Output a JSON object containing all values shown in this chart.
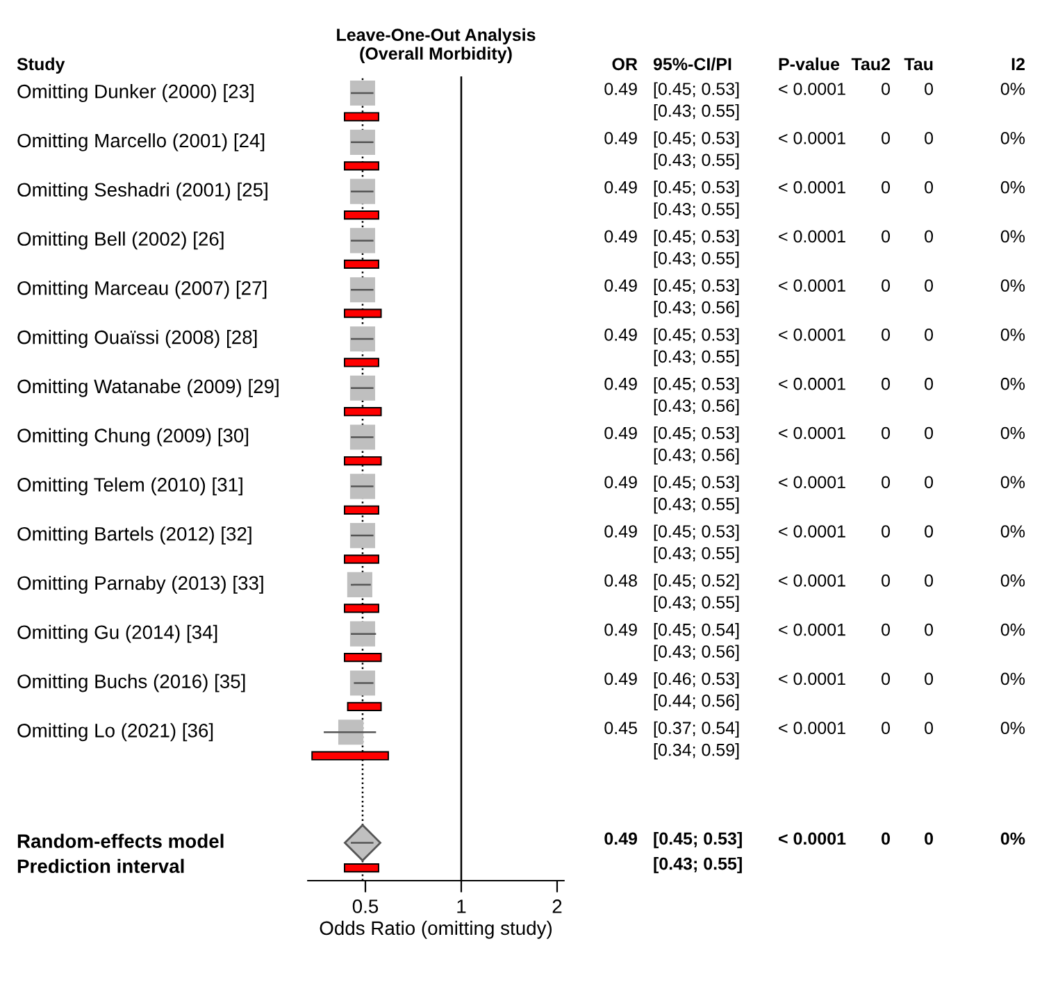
{
  "chart_data": {
    "type": "scatter",
    "orientation": "horizontal",
    "title": "Leave-One-Out Analysis\n(Overall Morbidity)",
    "xlabel": "Odds Ratio (omitting study)",
    "categories": [
      "Omitting Dunker (2000) [23]",
      "Omitting Marcello (2001) [24]",
      "Omitting Seshadri (2001) [25]",
      "Omitting Bell (2002) [26]",
      "Omitting Marceau (2007) [27]",
      "Omitting Ouaïssi (2008) [28]",
      "Omitting Watanabe (2009) [29]",
      "Omitting Chung (2009) [30]",
      "Omitting Telem (2010) [31]",
      "Omitting Bartels (2012) [32]",
      "Omitting Parnaby (2013) [33]",
      "Omitting Gu (2014) [34]",
      "Omitting Buchs (2016) [35]",
      "Omitting Lo (2021) [36]",
      "Random-effects model",
      "Prediction interval"
    ],
    "series": [
      {
        "marker": "square",
        "color": "#bfbfbf",
        "values": [
          0.49,
          0.49,
          0.49,
          0.49,
          0.49,
          0.49,
          0.49,
          0.49,
          0.49,
          0.49,
          0.48,
          0.49,
          0.49,
          0.45,
          null,
          null
        ],
        "errors": [
          [
            0.45,
            0.53
          ],
          [
            0.45,
            0.53
          ],
          [
            0.45,
            0.53
          ],
          [
            0.45,
            0.53
          ],
          [
            0.45,
            0.53
          ],
          [
            0.45,
            0.53
          ],
          [
            0.45,
            0.53
          ],
          [
            0.45,
            0.53
          ],
          [
            0.45,
            0.53
          ],
          [
            0.45,
            0.53
          ],
          [
            0.45,
            0.52
          ],
          [
            0.45,
            0.54
          ],
          [
            0.46,
            0.53
          ],
          [
            0.37,
            0.54
          ],
          null,
          null
        ]
      },
      {
        "type": "bar",
        "color": "#ff0000",
        "base": [
          0.43,
          0.43,
          0.43,
          0.43,
          0.43,
          0.43,
          0.43,
          0.43,
          0.43,
          0.43,
          0.43,
          0.43,
          0.44,
          0.34,
          null,
          0.43
        ],
        "values": [
          0.12,
          0.12,
          0.12,
          0.12,
          0.13,
          0.12,
          0.13,
          0.13,
          0.12,
          0.12,
          0.12,
          0.13,
          0.12,
          0.25,
          null,
          0.12
        ]
      },
      {
        "marker": "diamond",
        "color": "#c0c0c0",
        "values": [
          null,
          null,
          null,
          null,
          null,
          null,
          null,
          null,
          null,
          null,
          null,
          null,
          null,
          null,
          0.49,
          null
        ],
        "errors": [
          null,
          null,
          null,
          null,
          null,
          null,
          null,
          null,
          null,
          null,
          null,
          null,
          null,
          null,
          [
            0.45,
            0.53
          ],
          null
        ]
      }
    ],
    "log": "x",
    "xlim": [
      0.33,
      2.1
    ],
    "xticks": [
      0.5,
      1,
      2
    ],
    "tick_labels": "x",
    "grid": false,
    "legend": false,
    "ref_lines": [
      {
        "axis": "x",
        "value": 0.49,
        "line_style": "dotted",
        "color": "#000000"
      },
      {
        "axis": "x",
        "value": 1,
        "line_style": "solid",
        "color": "#000000"
      }
    ],
    "annotations": [
      "Study",
      "OR",
      "95%-CI/PI",
      "P-value",
      "Tau2",
      "Tau",
      "I2",
      "0.49",
      "[0.45; 0.53]\n[0.43; 0.55]",
      "< 0.0001",
      "0",
      "0",
      "0%",
      "0.49",
      "[0.45; 0.53]\n[0.43; 0.55]",
      "< 0.0001",
      "0",
      "0",
      "0%",
      "0.49",
      "[0.45; 0.53]\n[0.43; 0.55]",
      "< 0.0001",
      "0",
      "0",
      "0%",
      "0.49",
      "[0.45; 0.53]\n[0.43; 0.55]",
      "< 0.0001",
      "0",
      "0",
      "0%",
      "0.49",
      "[0.45; 0.53]\n[0.43; 0.56]",
      "< 0.0001",
      "0",
      "0",
      "0%",
      "0.49",
      "[0.45; 0.53]\n[0.43; 0.55]",
      "< 0.0001",
      "0",
      "0",
      "0%",
      "0.49",
      "[0.45; 0.53]\n[0.43; 0.56]",
      "< 0.0001",
      "0",
      "0",
      "0%",
      "0.49",
      "[0.45; 0.53]\n[0.43; 0.56]",
      "< 0.0001",
      "0",
      "0",
      "0%",
      "0.49",
      "[0.45; 0.53]\n[0.43; 0.55]",
      "< 0.0001",
      "0",
      "0",
      "0%",
      "0.49",
      "[0.45; 0.53]\n[0.43; 0.55]",
      "< 0.0001",
      "0",
      "0",
      "0%",
      "0.48",
      "[0.45; 0.52]\n[0.43; 0.55]",
      "< 0.0001",
      "0",
      "0",
      "0%",
      "0.49",
      "[0.45; 0.54]\n[0.43; 0.56]",
      "< 0.0001",
      "0",
      "0",
      "0%",
      "0.49",
      "[0.46; 0.53]\n[0.44; 0.56]",
      "< 0.0001",
      "0",
      "0",
      "0%",
      "0.45",
      "[0.37; 0.54]\n[0.34; 0.59]",
      "< 0.0001",
      "0",
      "0",
      "0%",
      "0.49",
      "[0.45; 0.53]",
      "< 0.0001",
      "0",
      "0",
      "0%",
      "[0.43; 0.55]"
    ]
  }
}
